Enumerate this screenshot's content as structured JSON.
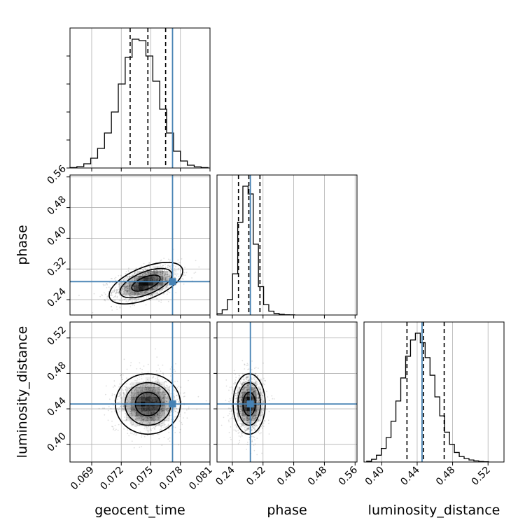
{
  "chart_data": {
    "type": "corner",
    "parameters": [
      "geocent_time",
      "phase",
      "luminosity_distance"
    ],
    "truth_color": "#4682b4",
    "truths": {
      "geocent_time": 0.0772,
      "phase": 0.287,
      "luminosity_distance": 0.4455
    },
    "ranges": {
      "geocent_time": [
        0.0668,
        0.081
      ],
      "phase": [
        0.2,
        0.565
      ],
      "luminosity_distance": [
        0.38,
        0.538
      ]
    },
    "ticks": {
      "geocent_time": [
        "0.069",
        "0.072",
        "0.075",
        "0.078",
        "0.081"
      ],
      "phase": [
        "0.24",
        "0.32",
        "0.40",
        "0.48",
        "0.56"
      ],
      "luminosity_distance": [
        "0.40",
        "0.44",
        "0.48",
        "0.52"
      ]
    },
    "grid": true,
    "histograms": [
      {
        "parameter": "geocent_time",
        "bin_edges": [
          0.0668,
          0.0675,
          0.0682,
          0.0689,
          0.0696,
          0.0703,
          0.071,
          0.0717,
          0.0724,
          0.0731,
          0.0738,
          0.0745,
          0.0752,
          0.0759,
          0.0766,
          0.0773,
          0.078,
          0.0787,
          0.0794,
          0.0801,
          0.0808
        ],
        "counts": [
          0.3,
          1,
          3,
          7,
          14,
          25,
          40,
          60,
          79,
          92,
          91,
          80,
          62,
          42,
          25,
          12,
          5,
          2,
          0.8,
          0.3
        ],
        "quantiles": [
          0.0729,
          0.0747,
          0.0765
        ]
      },
      {
        "parameter": "phase",
        "bin_edges": [
          0.2,
          0.2135,
          0.227,
          0.2405,
          0.254,
          0.2675,
          0.281,
          0.2945,
          0.308,
          0.3215,
          0.335,
          0.3485,
          0.362,
          0.3755,
          0.389,
          0.4025
        ],
        "counts": [
          1,
          4,
          12,
          32,
          72,
          100,
          94,
          55,
          22,
          8,
          3,
          1.2,
          0.5,
          0.2,
          0.1
        ],
        "quantiles": [
          0.256,
          0.283,
          0.312
        ]
      },
      {
        "parameter": "luminosity_distance",
        "bin_edges": [
          0.383,
          0.3885,
          0.394,
          0.3995,
          0.405,
          0.4105,
          0.416,
          0.4215,
          0.427,
          0.4325,
          0.438,
          0.4435,
          0.449,
          0.4545,
          0.46,
          0.4655,
          0.471,
          0.4765,
          0.482,
          0.4875,
          0.493,
          0.4985,
          0.504,
          0.5095,
          0.515,
          0.5205
        ],
        "counts": [
          0.6,
          2,
          5,
          10,
          18,
          30,
          45,
          62,
          78,
          90,
          95,
          88,
          77,
          64,
          48,
          34,
          22,
          13,
          7,
          4,
          2.5,
          1.5,
          0.8,
          0.4,
          0.2
        ],
        "quantiles": [
          0.4285,
          0.447,
          0.4705
        ]
      }
    ],
    "joint": [
      {
        "x": "geocent_time",
        "y": "phase",
        "center": [
          0.0745,
          0.283
        ],
        "sd": [
          0.0016,
          0.022
        ],
        "rho": 0.45
      },
      {
        "x": "geocent_time",
        "y": "luminosity_distance",
        "center": [
          0.0747,
          0.4455
        ],
        "sd": [
          0.0015,
          0.0155
        ],
        "rho": 0.0
      },
      {
        "x": "phase",
        "y": "luminosity_distance",
        "center": [
          0.284,
          0.4455
        ],
        "sd": [
          0.019,
          0.0155
        ],
        "rho": 0.0
      }
    ]
  }
}
